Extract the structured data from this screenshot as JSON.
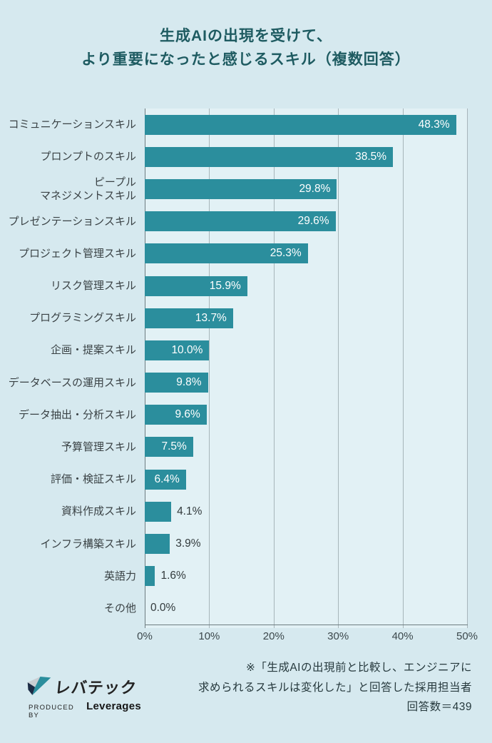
{
  "title": "生成AIの出現を受けて、\nより重要になったと感じるスキル（複数回答）",
  "chart_data": {
    "type": "bar",
    "orientation": "horizontal",
    "title": "生成AIの出現を受けて、より重要になったと感じるスキル（複数回答）",
    "categories": [
      "コミュニケーションスキル",
      "プロンプトのスキル",
      "ピープルマネジメントスキル",
      "プレゼンテーションスキル",
      "プロジェクト管理スキル",
      "リスク管理スキル",
      "プログラミングスキル",
      "企画・提案スキル",
      "データベースの運用スキル",
      "データ抽出・分析スキル",
      "予算管理スキル",
      "評価・検証スキル",
      "資料作成スキル",
      "インフラ構築スキル",
      "英語力",
      "その他"
    ],
    "category_display": [
      "コミュニケーションスキル",
      "プロンプトのスキル",
      "ピープル\nマネジメントスキル",
      "プレゼンテーションスキル",
      "プロジェクト管理スキル",
      "リスク管理スキル",
      "プログラミングスキル",
      "企画・提案スキル",
      "データベースの運用スキル",
      "データ抽出・分析スキル",
      "予算管理スキル",
      "評価・検証スキル",
      "資料作成スキル",
      "インフラ構築スキル",
      "英語力",
      "その他"
    ],
    "values": [
      48.3,
      38.5,
      29.8,
      29.6,
      25.3,
      15.9,
      13.7,
      10.0,
      9.8,
      9.6,
      7.5,
      6.4,
      4.1,
      3.9,
      1.6,
      0.0
    ],
    "value_labels": [
      "48.3%",
      "38.5%",
      "29.8%",
      "29.6%",
      "25.3%",
      "15.9%",
      "13.7%",
      "10.0%",
      "9.8%",
      "9.6%",
      "7.5%",
      "6.4%",
      "4.1%",
      "3.9%",
      "1.6%",
      "0.0%"
    ],
    "x_ticks": [
      "0%",
      "10%",
      "20%",
      "30%",
      "40%",
      "50%"
    ],
    "xlim": [
      0,
      50
    ],
    "grid": true,
    "legend": false,
    "bar_color": "#2b8e9d"
  },
  "footnote": "※「生成AIの出現前と比較し、エンジニアに\n求められるスキルは変化した」と回答した採用担当者\n回答数＝439",
  "logo": {
    "brand": "レバテック",
    "produced_by": "PRODUCED BY",
    "company": "Leverages"
  },
  "colors": {
    "background": "#d6e9ef",
    "plot_background": "#e2f1f5",
    "bar": "#2b8e9d",
    "title": "#1e5b61",
    "grid": "#a7b5ba",
    "axis": "#6e7d81",
    "value_inside": "#ffffff",
    "value_outside": "#323a3c",
    "logo_teal": "#2b8e9d",
    "logo_navy": "#1c2b45",
    "logo_gray": "#c9ced3"
  }
}
